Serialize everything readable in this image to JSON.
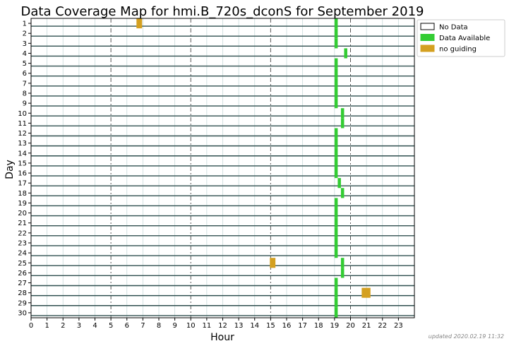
{
  "chart_data": {
    "type": "heatmap",
    "title": "Data Coverage Map for hmi.B_720s_dconS for September 2019",
    "xlabel": "Hour",
    "ylabel": "Day",
    "xlim": [
      0,
      24
    ],
    "x_ticks": [
      "0",
      "1",
      "2",
      "3",
      "4",
      "5",
      "6",
      "7",
      "8",
      "9",
      "10",
      "11",
      "12",
      "13",
      "14",
      "15",
      "16",
      "17",
      "18",
      "19",
      "20",
      "21",
      "22",
      "23"
    ],
    "days": [
      "1",
      "2",
      "3",
      "4",
      "5",
      "6",
      "7",
      "8",
      "9",
      "10",
      "11",
      "12",
      "13",
      "14",
      "15",
      "16",
      "17",
      "18",
      "19",
      "20",
      "21",
      "22",
      "23",
      "24",
      "25",
      "26",
      "27",
      "28",
      "29",
      "30"
    ],
    "legend": [
      {
        "label": "No Data",
        "color": "#ffffff"
      },
      {
        "label": "Data Available",
        "color": "#33cc33"
      },
      {
        "label": "no guiding",
        "color": "#d4a020"
      }
    ],
    "data_available": [
      {
        "day": 1,
        "start": 19.0,
        "end": 19.2
      },
      {
        "day": 2,
        "start": 19.0,
        "end": 19.2
      },
      {
        "day": 3,
        "start": 19.0,
        "end": 19.2
      },
      {
        "day": 4,
        "start": 19.6,
        "end": 19.8
      },
      {
        "day": 5,
        "start": 19.0,
        "end": 19.2
      },
      {
        "day": 6,
        "start": 19.0,
        "end": 19.2
      },
      {
        "day": 7,
        "start": 19.0,
        "end": 19.2
      },
      {
        "day": 8,
        "start": 19.0,
        "end": 19.2
      },
      {
        "day": 9,
        "start": 19.0,
        "end": 19.2
      },
      {
        "day": 10,
        "start": 19.4,
        "end": 19.6
      },
      {
        "day": 11,
        "start": 19.4,
        "end": 19.6
      },
      {
        "day": 12,
        "start": 19.0,
        "end": 19.2
      },
      {
        "day": 13,
        "start": 19.0,
        "end": 19.2
      },
      {
        "day": 14,
        "start": 19.0,
        "end": 19.2
      },
      {
        "day": 15,
        "start": 19.0,
        "end": 19.2
      },
      {
        "day": 16,
        "start": 19.0,
        "end": 19.2
      },
      {
        "day": 17,
        "start": 19.2,
        "end": 19.4
      },
      {
        "day": 18,
        "start": 19.4,
        "end": 19.6
      },
      {
        "day": 19,
        "start": 19.0,
        "end": 19.2
      },
      {
        "day": 20,
        "start": 19.0,
        "end": 19.2
      },
      {
        "day": 21,
        "start": 19.0,
        "end": 19.2
      },
      {
        "day": 22,
        "start": 19.0,
        "end": 19.2
      },
      {
        "day": 23,
        "start": 19.0,
        "end": 19.2
      },
      {
        "day": 24,
        "start": 19.0,
        "end": 19.2
      },
      {
        "day": 25,
        "start": 19.4,
        "end": 19.6
      },
      {
        "day": 26,
        "start": 19.4,
        "end": 19.6
      },
      {
        "day": 27,
        "start": 19.0,
        "end": 19.2
      },
      {
        "day": 28,
        "start": 19.0,
        "end": 19.2
      },
      {
        "day": 29,
        "start": 19.0,
        "end": 19.2
      },
      {
        "day": 30,
        "start": 19.0,
        "end": 19.2
      }
    ],
    "no_guiding": [
      {
        "day": 1,
        "start": 6.6,
        "end": 6.95
      },
      {
        "day": 25,
        "start": 14.95,
        "end": 15.3
      },
      {
        "day": 28,
        "start": 20.7,
        "end": 21.25
      }
    ],
    "grid": true,
    "legend_position": "outside-top-right"
  },
  "footer": {
    "updated": "updated 2020.02.19 11:32"
  }
}
